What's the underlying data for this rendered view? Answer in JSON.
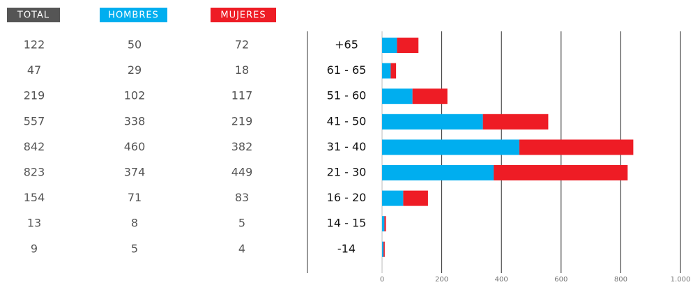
{
  "chart_data": {
    "type": "bar",
    "orientation": "horizontal",
    "stacked": true,
    "total_label": "TOTAL",
    "total_color": "#555555",
    "categories": [
      "+65",
      "61 - 65",
      "51 - 60",
      "41 - 50",
      "31 - 40",
      "21 - 30",
      "16 - 20",
      "14 - 15",
      "-14"
    ],
    "totals": [
      122,
      47,
      219,
      557,
      842,
      823,
      154,
      13,
      9
    ],
    "series": [
      {
        "name": "HOMBRES",
        "color": "#00aeef",
        "values": [
          50,
          29,
          102,
          338,
          460,
          374,
          71,
          8,
          5
        ]
      },
      {
        "name": "MUJERES",
        "color": "#ee1c25",
        "values": [
          72,
          18,
          117,
          219,
          382,
          449,
          83,
          5,
          4
        ]
      }
    ],
    "xlim": [
      0,
      1000
    ],
    "xticks": [
      0,
      200,
      400,
      600,
      800,
      {
        "value": 1000,
        "label": "1.000"
      }
    ],
    "grid": true
  }
}
